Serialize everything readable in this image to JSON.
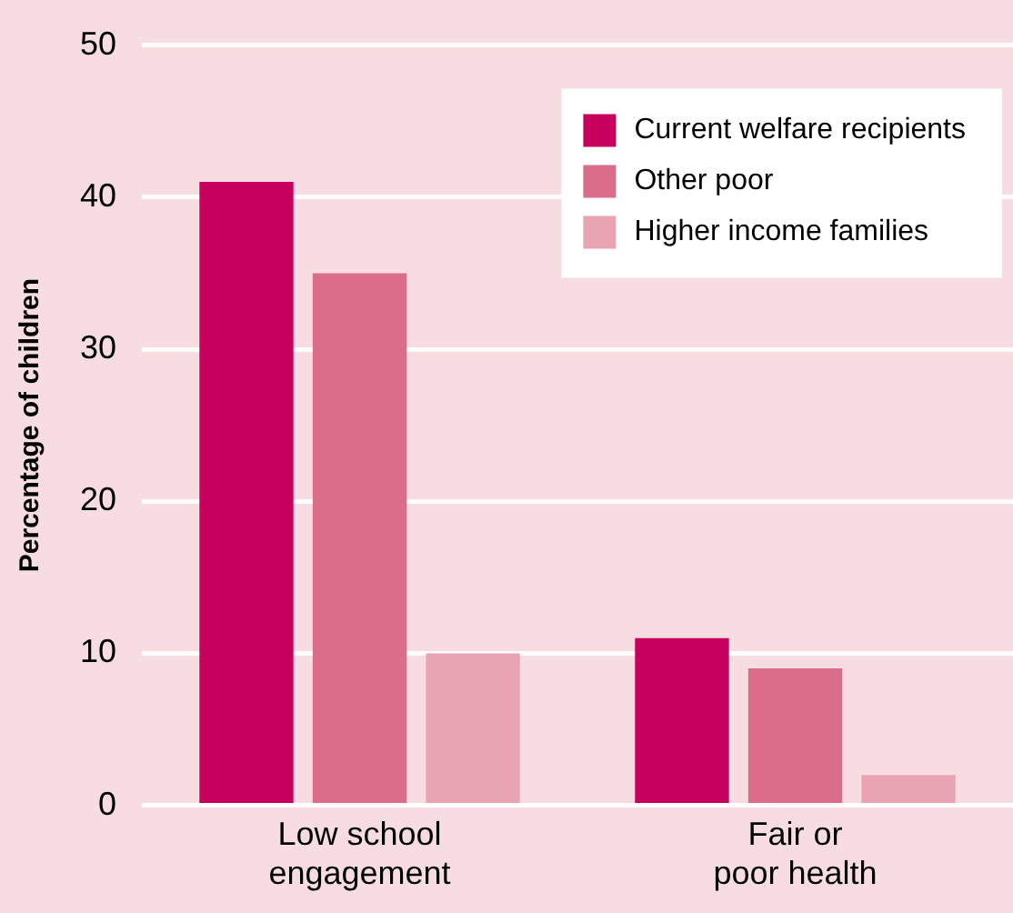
{
  "chart_data": {
    "type": "bar",
    "ylabel": "Percentage of children",
    "categories": [
      "Low school engagement",
      "Fair or poor health"
    ],
    "series": [
      {
        "name": "Current welfare recipients",
        "color": "#c8005d",
        "values": [
          41,
          11
        ]
      },
      {
        "name": "Other poor",
        "color": "#da6d8a",
        "values": [
          35,
          9
        ]
      },
      {
        "name": "Higher income families",
        "color": "#e8a4b2",
        "values": [
          10,
          2
        ]
      }
    ],
    "ylim": [
      0,
      50
    ],
    "yticks": [
      0,
      10,
      20,
      30,
      40,
      50
    ],
    "grid": "y",
    "legend": "top right"
  }
}
